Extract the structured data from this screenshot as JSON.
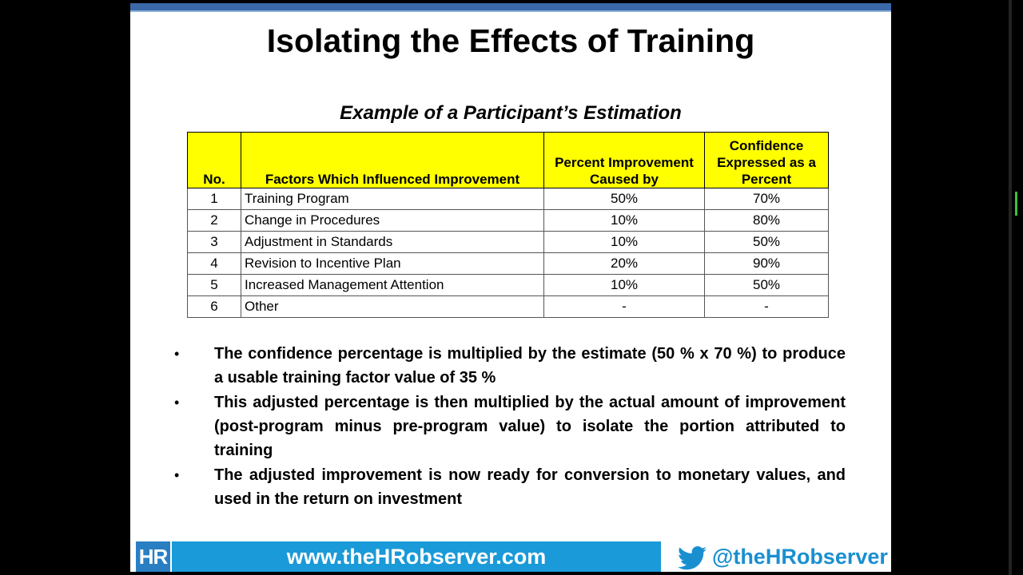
{
  "slide": {
    "title": "Isolating the Effects of Training",
    "subtitle": "Example of a Participant’s Estimation"
  },
  "table": {
    "headers": {
      "no": "No.",
      "factor": "Factors Which Influenced Improvement",
      "percent": "Percent Improvement Caused by",
      "confidence": "Confidence Expressed as a Percent"
    },
    "rows": [
      {
        "no": "1",
        "factor": "Training Program",
        "percent": "50%",
        "confidence": "70%"
      },
      {
        "no": "2",
        "factor": "Change in Procedures",
        "percent": "10%",
        "confidence": "80%"
      },
      {
        "no": "3",
        "factor": "Adjustment in Standards",
        "percent": "10%",
        "confidence": "50%"
      },
      {
        "no": "4",
        "factor": "Revision to Incentive Plan",
        "percent": "20%",
        "confidence": "90%"
      },
      {
        "no": "5",
        "factor": "Increased Management Attention",
        "percent": "10%",
        "confidence": "50%"
      },
      {
        "no": "6",
        "factor": "Other",
        "percent": "-",
        "confidence": "-"
      }
    ]
  },
  "bullets": [
    "The confidence percentage is multiplied by the estimate (50 % x 70 %) to produce a usable training factor value of 35 %",
    "This adjusted percentage is then multiplied by the actual amount of improvement (post-program minus pre-program value) to isolate the portion attributed to training",
    "The adjusted improvement is now ready for conversion to monetary values, and used in the return on investment"
  ],
  "bullet_symbol": "•",
  "footer": {
    "logo": "HR",
    "url": "www.theHRobserver.com",
    "twitter": "@theHRobserver",
    "brand_color": "#1a9ad8"
  }
}
